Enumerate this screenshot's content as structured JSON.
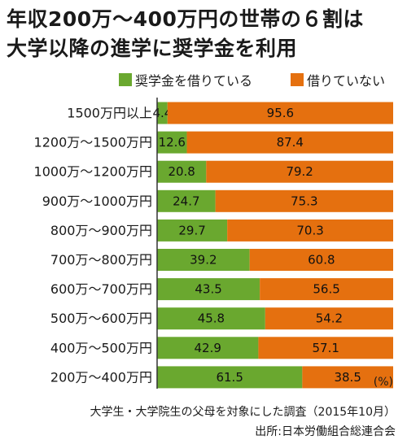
{
  "title": {
    "line1": "年収200万〜400万円の世帯の６割は",
    "line2": "大学以降の進学に奨学金を利用"
  },
  "colors": {
    "borrowing": "#6aa82f",
    "not_borrowing": "#e5700f",
    "axis": "#333333",
    "text": "#1a1a1a"
  },
  "chart_data": {
    "type": "bar",
    "orientation": "horizontal-stacked-100",
    "categories": [
      "1500万円以上",
      "1200万〜1500万円",
      "1000万〜1200万円",
      "900万〜1000万円",
      "800万〜900万円",
      "700万〜800万円",
      "600万〜700万円",
      "500万〜600万円",
      "400万〜500万円",
      "200万〜400万円"
    ],
    "series": [
      {
        "name": "奨学金を借りている",
        "color": "#6aa82f",
        "values": [
          4.4,
          12.6,
          20.8,
          24.7,
          29.7,
          39.2,
          43.5,
          45.8,
          42.9,
          61.5
        ]
      },
      {
        "name": "借りていない",
        "color": "#e5700f",
        "values": [
          95.6,
          87.4,
          79.2,
          75.3,
          70.3,
          60.8,
          56.5,
          54.2,
          57.1,
          38.5
        ]
      }
    ],
    "xlim": [
      0,
      100
    ],
    "unit_label": "(%)",
    "legend_position": "top",
    "grid": false
  },
  "footer": {
    "note": "大学生・大学院生の父母を対象にした調査（2015年10月）",
    "source": "出所:日本労働組合総連合会"
  }
}
